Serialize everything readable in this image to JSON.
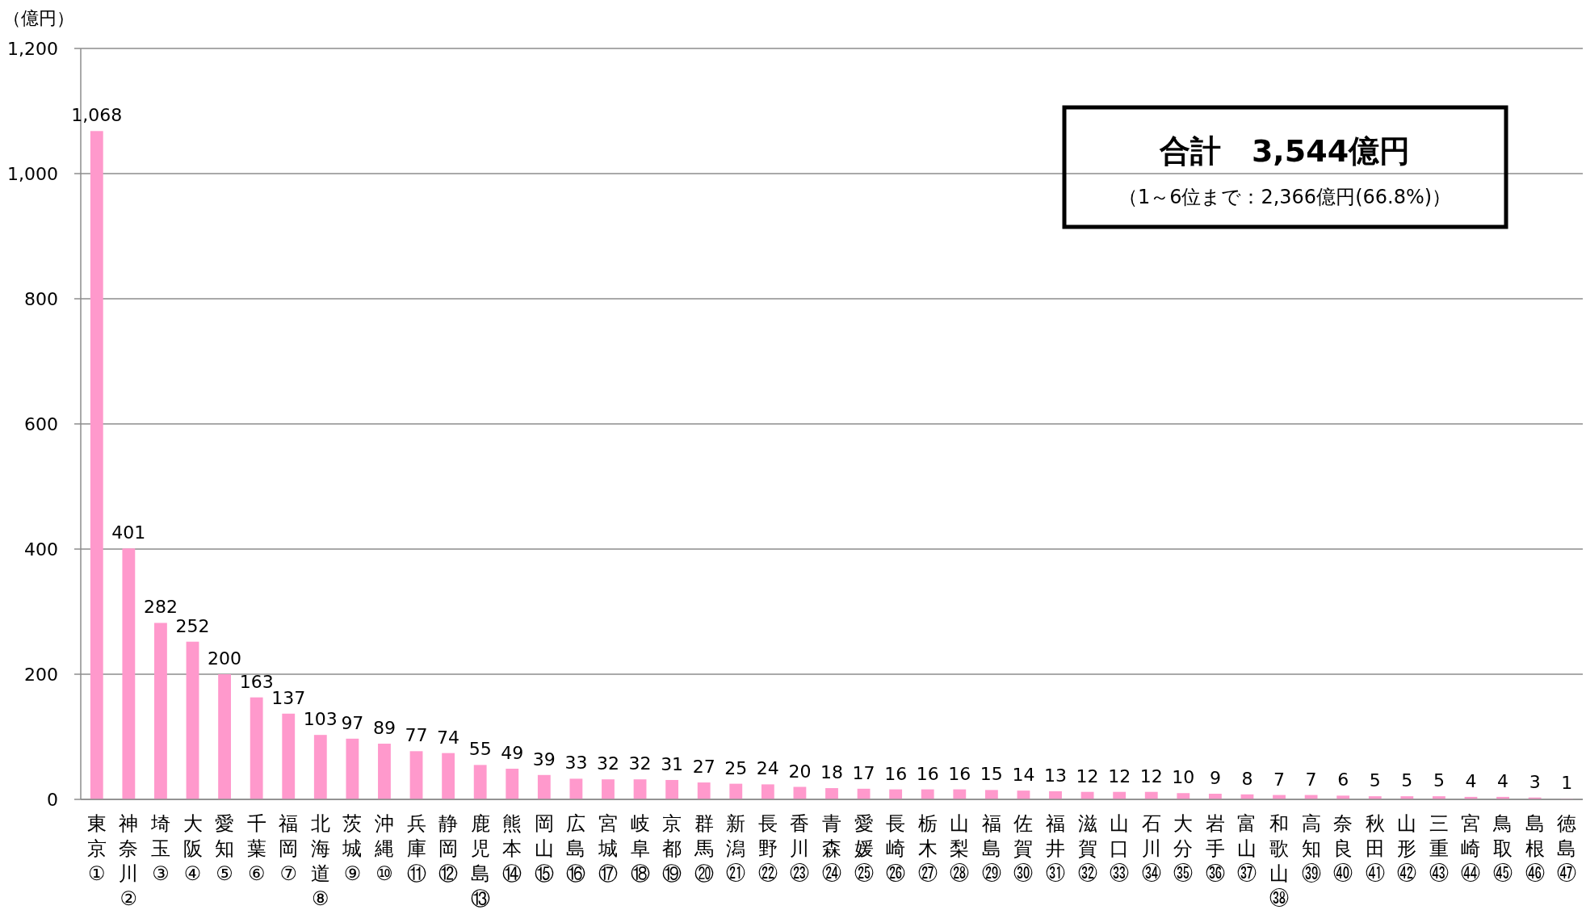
{
  "chart_data": {
    "type": "bar",
    "ylabel": "（億円）",
    "color": "#ff99cc",
    "categories": [
      "東京①",
      "神奈川②",
      "埼玉③",
      "大阪④",
      "愛知⑤",
      "千葉⑥",
      "福岡⑦",
      "北海道⑧",
      "茨城⑨",
      "沖縄⑩",
      "兵庫⑪",
      "静岡⑫",
      "鹿児島⑬",
      "熊本⑭",
      "岡山⑮",
      "広島⑯",
      "宮城⑰",
      "岐阜⑱",
      "京都⑲",
      "群馬⑳",
      "新潟㉑",
      "長野㉒",
      "香川㉓",
      "青森㉔",
      "愛媛㉕",
      "長崎㉖",
      "栃木㉗",
      "山梨㉘",
      "福島㉙",
      "佐賀㉚",
      "福井㉛",
      "滋賀㉜",
      "山口㉝",
      "石川㉞",
      "大分㉟",
      "岩手㊱",
      "富山㊲",
      "和歌山㊳",
      "高知㊴",
      "奈良㊵",
      "秋田㊶",
      "山形㊷",
      "三重㊸",
      "宮崎㊹",
      "鳥取㊺",
      "島根㊻",
      "徳島㊼"
    ],
    "values": [
      1068,
      401,
      282,
      252,
      200,
      163,
      137,
      103,
      97,
      89,
      77,
      74,
      55,
      49,
      39,
      33,
      32,
      32,
      31,
      27,
      25,
      24,
      20,
      18,
      17,
      16,
      16,
      16,
      15,
      14,
      13,
      12,
      12,
      12,
      10,
      9,
      8,
      7,
      7,
      6,
      5,
      5,
      5,
      4,
      4,
      3,
      1
    ],
    "ylim": [
      0,
      1200
    ],
    "yticks": [
      0,
      200,
      400,
      600,
      800,
      {
        "value": 1000,
        "label": "1,000"
      },
      {
        "value": 1200,
        "label": "1,200"
      }
    ],
    "value_labels": [
      "1,068",
      "401",
      "282",
      "252",
      "200",
      "163",
      "137",
      "103",
      "97",
      "89",
      "77",
      "74",
      "55",
      "49",
      "39",
      "33",
      "32",
      "32",
      "31",
      "27",
      "25",
      "24",
      "20",
      "18",
      "17",
      "16",
      "16",
      "16",
      "15",
      "14",
      "13",
      "12",
      "12",
      "12",
      "10",
      "9",
      "8",
      "7",
      "7",
      "6",
      "5",
      "5",
      "5",
      "4",
      "4",
      "3",
      "1"
    ],
    "grid": "y",
    "annotations": [
      "合計　3,544億円",
      "（1～6位まで：2,366億円(66.8%)）"
    ]
  }
}
